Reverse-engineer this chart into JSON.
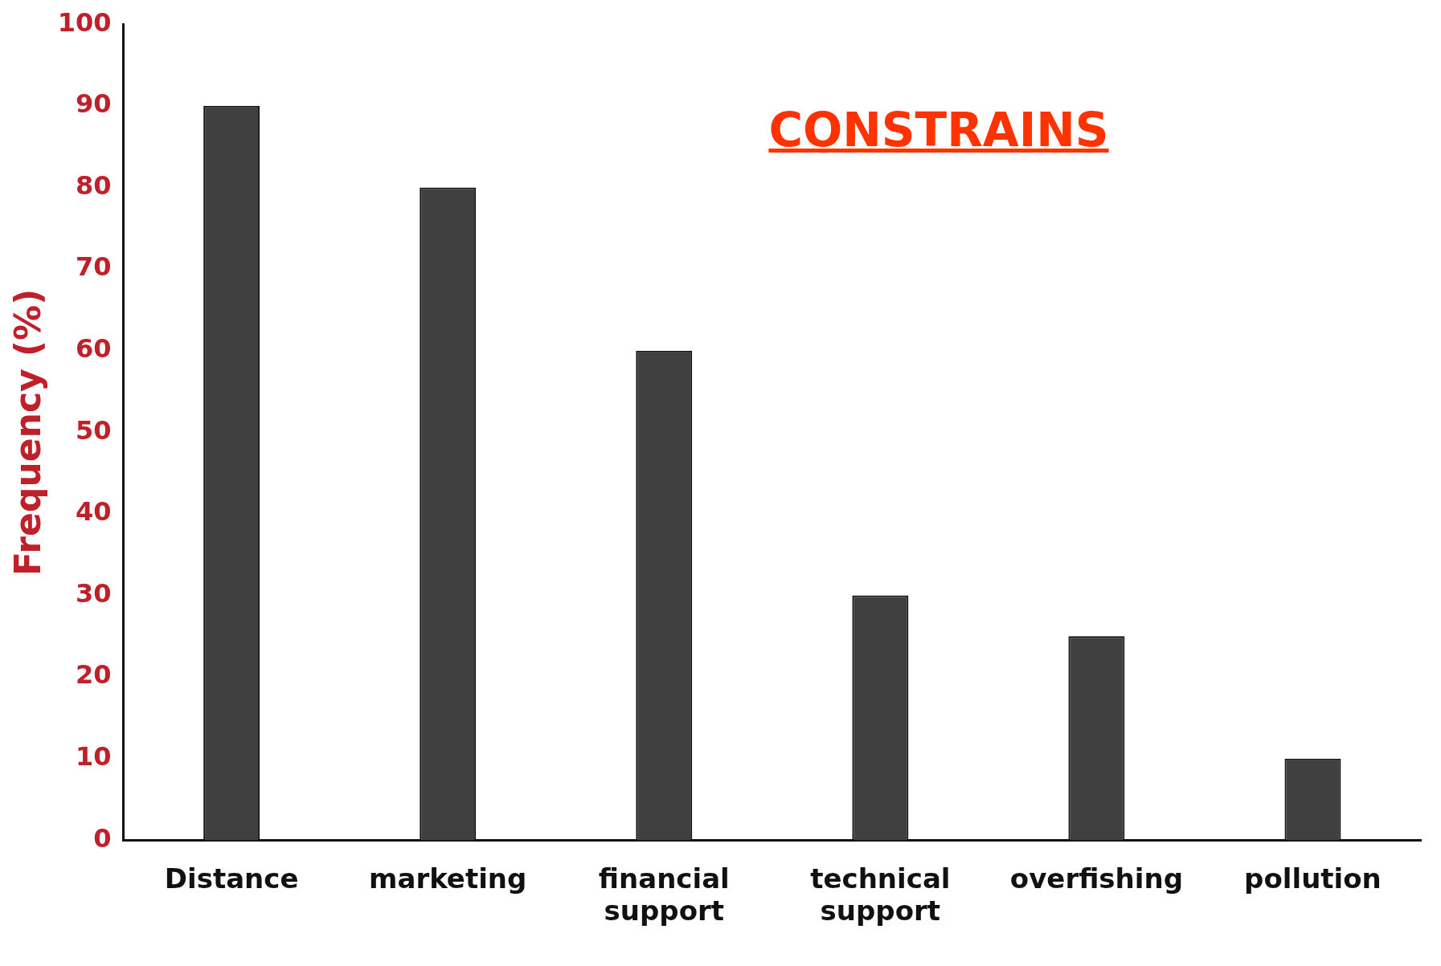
{
  "chart_data": {
    "type": "bar",
    "title": "CONSTRAINS",
    "ylabel": "Frequency (%)",
    "categories": [
      "Distance",
      "marketing",
      "financial support",
      "technical support",
      "overfishing",
      "pollution"
    ],
    "values": [
      90,
      80,
      60,
      30,
      25,
      10
    ],
    "color": "#404040",
    "ylim": [
      0,
      100
    ],
    "yticks": [
      0,
      10,
      20,
      30,
      40,
      50,
      60,
      70,
      80,
      90,
      100
    ],
    "grid": false,
    "legend": false
  }
}
